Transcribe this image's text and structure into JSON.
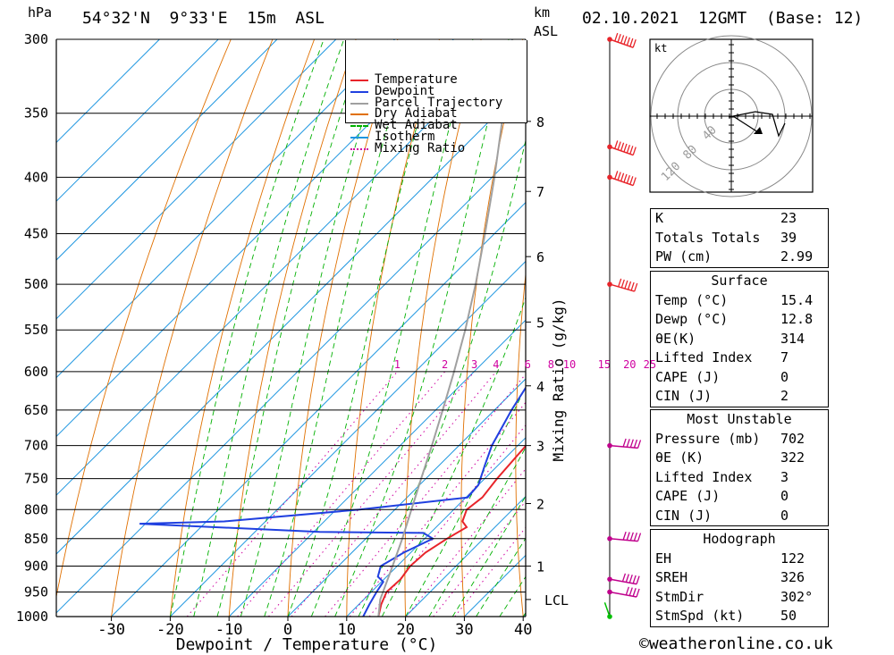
{
  "header": {
    "p_unit": "hPa",
    "location": "54°32'N  9°33'E  15m  ASL",
    "km": "km",
    "asl": "ASL",
    "datetime": "02.10.2021  12GMT  (Base: 12)"
  },
  "footer": {
    "credit": "©weatheronline.co.uk"
  },
  "legend": {
    "items": [
      {
        "label": "Temperature",
        "color": "#e8242a",
        "style": "solid"
      },
      {
        "label": "Dewpoint",
        "color": "#2040e0",
        "style": "solid"
      },
      {
        "label": "Parcel Trajectory",
        "color": "#a0a0a0",
        "style": "solid"
      },
      {
        "label": "Dry Adiabat",
        "color": "#e07000",
        "style": "solid"
      },
      {
        "label": "Wet Adiabat",
        "color": "#00b000",
        "style": "dashed"
      },
      {
        "label": "Isotherm",
        "color": "#1e96e0",
        "style": "solid"
      },
      {
        "label": "Mixing Ratio",
        "color": "#d000a0",
        "style": "dotted"
      }
    ]
  },
  "hodograph": {
    "unit": "kt",
    "ring_labels": [
      "40",
      "80",
      "120"
    ]
  },
  "indices": {
    "basic": [
      {
        "k": "K",
        "v": "23"
      },
      {
        "k": "Totals Totals",
        "v": "39"
      },
      {
        "k": "PW (cm)",
        "v": "2.99"
      }
    ],
    "surface": {
      "title": "Surface",
      "rows": [
        {
          "k": "Temp (°C)",
          "v": "15.4"
        },
        {
          "k": "Dewp (°C)",
          "v": "12.8"
        },
        {
          "k": "θE(K)",
          "v": "314"
        },
        {
          "k": "Lifted Index",
          "v": "7"
        },
        {
          "k": "CAPE (J)",
          "v": "0"
        },
        {
          "k": "CIN (J)",
          "v": "2"
        }
      ]
    },
    "unstable": {
      "title": "Most Unstable",
      "rows": [
        {
          "k": "Pressure (mb)",
          "v": "702"
        },
        {
          "k": "θE (K)",
          "v": "322"
        },
        {
          "k": "Lifted Index",
          "v": "3"
        },
        {
          "k": "CAPE (J)",
          "v": "0"
        },
        {
          "k": "CIN (J)",
          "v": "0"
        }
      ]
    },
    "hodo": {
      "title": "Hodograph",
      "rows": [
        {
          "k": "EH",
          "v": "122"
        },
        {
          "k": "SREH",
          "v": "326"
        },
        {
          "k": "StmDir",
          "v": "302°"
        },
        {
          "k": "StmSpd (kt)",
          "v": "50"
        }
      ]
    }
  },
  "chart_data": {
    "type": "line",
    "title": "54°32'N  9°33'E  15m  ASL",
    "xlabel": "Dewpoint / Temperature (°C)",
    "ylabel": "hPa",
    "xlim": [
      -40,
      40
    ],
    "ylim": [
      1000,
      300
    ],
    "x_ticks": [
      -30,
      -20,
      -10,
      0,
      10,
      20,
      30,
      40
    ],
    "x_tick_labels": [
      "-30",
      "-20",
      "-10",
      "0",
      "10",
      "20",
      "30",
      "40"
    ],
    "pressure_ticks": [
      300,
      350,
      400,
      450,
      500,
      550,
      600,
      650,
      700,
      750,
      800,
      850,
      900,
      950,
      1000
    ],
    "height_axis": {
      "label": "km ASL",
      "ticks": [
        {
          "km": "1",
          "p": 900
        },
        {
          "km": "2",
          "p": 790
        },
        {
          "km": "3",
          "p": 700
        },
        {
          "km": "4",
          "p": 618
        },
        {
          "km": "5",
          "p": 541
        },
        {
          "km": "6",
          "p": 472
        },
        {
          "km": "7",
          "p": 412
        },
        {
          "km": "8",
          "p": 356
        }
      ],
      "lcl_label": "LCL",
      "lcl_p": 965
    },
    "mixing_ratio": {
      "label": "Mixing Ratio (g/kg)",
      "values": [
        "1",
        "2",
        "3",
        "4",
        "6",
        "8",
        "10",
        "15",
        "20",
        "25"
      ]
    },
    "series": [
      {
        "name": "Temperature",
        "color": "#e8242a",
        "points": [
          [
            1000,
            15.4
          ],
          [
            975,
            13.8
          ],
          [
            950,
            12.6
          ],
          [
            925,
            12.8
          ],
          [
            900,
            12.2
          ],
          [
            875,
            12.5
          ],
          [
            850,
            13.8
          ],
          [
            830,
            15.2
          ],
          [
            820,
            13.5
          ],
          [
            800,
            12.2
          ],
          [
            780,
            12.8
          ],
          [
            750,
            12.1
          ],
          [
            700,
            11.4
          ],
          [
            680,
            9.6
          ],
          [
            650,
            7.2
          ],
          [
            620,
            5.6
          ],
          [
            600,
            4.2
          ],
          [
            550,
            -0.8
          ],
          [
            500,
            -6.9
          ],
          [
            450,
            -13.8
          ],
          [
            400,
            -22.0
          ],
          [
            350,
            -31.2
          ],
          [
            300,
            -41.5
          ]
        ]
      },
      {
        "name": "Dewpoint",
        "color": "#2040e0",
        "points": [
          [
            1000,
            12.8
          ],
          [
            975,
            11.8
          ],
          [
            950,
            10.9
          ],
          [
            930,
            10.3
          ],
          [
            920,
            8.5
          ],
          [
            900,
            7.2
          ],
          [
            875,
            8.8
          ],
          [
            850,
            11.4
          ],
          [
            840,
            8.8
          ],
          [
            838,
            -9.0
          ],
          [
            824,
            -41.0
          ],
          [
            820,
            -27.0
          ],
          [
            800,
            -6.0
          ],
          [
            780,
            10.3
          ],
          [
            760,
            10.0
          ],
          [
            730,
            7.8
          ],
          [
            700,
            5.6
          ],
          [
            650,
            2.9
          ],
          [
            610,
            1.0
          ],
          [
            600,
            -0.8
          ],
          [
            550,
            -6.0
          ],
          [
            500,
            -12.8
          ],
          [
            450,
            -19.5
          ],
          [
            400,
            -26.5
          ],
          [
            350,
            -35.0
          ],
          [
            320,
            -41.0
          ],
          [
            300,
            -44.0
          ]
        ]
      },
      {
        "name": "Parcel Trajectory",
        "color": "#a0a0a0",
        "points": [
          [
            1000,
            15.4
          ],
          [
            965,
            12.8
          ],
          [
            900,
            9.2
          ],
          [
            850,
            6.2
          ],
          [
            800,
            2.8
          ],
          [
            750,
            -0.8
          ],
          [
            700,
            -4.6
          ],
          [
            650,
            -8.8
          ],
          [
            600,
            -13.4
          ],
          [
            550,
            -18.6
          ],
          [
            500,
            -24.6
          ],
          [
            450,
            -31.6
          ],
          [
            400,
            -39.6
          ],
          [
            350,
            -49.0
          ],
          [
            300,
            -60.0
          ]
        ]
      }
    ],
    "wind_barbs": [
      {
        "p": 1000,
        "dir": 170,
        "kt": 5
      },
      {
        "p": 950,
        "dir": 290,
        "kt": 45
      },
      {
        "p": 925,
        "dir": 290,
        "kt": 50
      },
      {
        "p": 850,
        "dir": 280,
        "kt": 50
      },
      {
        "p": 700,
        "dir": 280,
        "kt": 50
      },
      {
        "p": 500,
        "dir": 300,
        "kt": 60
      },
      {
        "p": 400,
        "dir": 305,
        "kt": 75
      },
      {
        "p": 400,
        "dir": 305,
        "kt": 75
      },
      {
        "p": 300,
        "dir": 305,
        "kt": 70
      }
    ]
  }
}
